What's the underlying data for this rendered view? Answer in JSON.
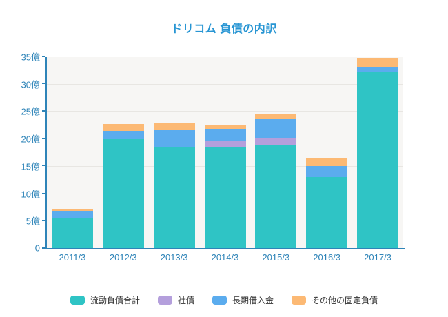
{
  "chart_data": {
    "type": "bar",
    "stacked": true,
    "title": "ドリコム 負債の内訳",
    "xlabel": "",
    "ylabel": "",
    "unit": "億",
    "ylim": [
      0,
      35
    ],
    "grid": true,
    "legend_position": "bottom",
    "categories": [
      "2011/3",
      "2012/3",
      "2013/3",
      "2014/3",
      "2015/3",
      "2016/3",
      "2017/3"
    ],
    "series": [
      {
        "name": "流動負債合計",
        "color": "#2fc4c5",
        "values": [
          5.5,
          19.9,
          18.4,
          18.4,
          18.7,
          13.0,
          32.1
        ]
      },
      {
        "name": "社債",
        "color": "#b49fdc",
        "values": [
          0,
          0,
          0,
          1.2,
          1.5,
          0,
          0
        ]
      },
      {
        "name": "長期借入金",
        "color": "#5bacee",
        "values": [
          1.3,
          1.5,
          3.2,
          2.2,
          3.5,
          2.0,
          1.0
        ]
      },
      {
        "name": "その他の固定負債",
        "color": "#fcb974",
        "values": [
          0.4,
          1.3,
          1.2,
          0.6,
          0.9,
          1.5,
          1.6
        ]
      }
    ],
    "y_ticks": [
      {
        "value": 0,
        "label": "0"
      },
      {
        "value": 5,
        "label": "5億"
      },
      {
        "value": 10,
        "label": "10億"
      },
      {
        "value": 15,
        "label": "15億"
      },
      {
        "value": 20,
        "label": "20億"
      },
      {
        "value": 25,
        "label": "25億"
      },
      {
        "value": 30,
        "label": "30億"
      },
      {
        "value": 35,
        "label": "35億"
      }
    ]
  },
  "colors": {
    "title_blue": "#2795d3",
    "axis_blue": "#2e84b8",
    "axis_text_blue": "#2e84b8",
    "gridline": "#e8e6e2",
    "plot_background": "#f7f6f4",
    "legend_text": "#333333"
  }
}
